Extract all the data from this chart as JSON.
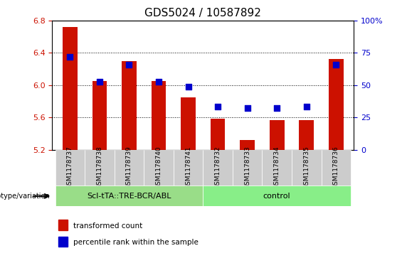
{
  "title": "GDS5024 / 10587892",
  "samples": [
    "GSM1178737",
    "GSM1178738",
    "GSM1178739",
    "GSM1178740",
    "GSM1178741",
    "GSM1178732",
    "GSM1178733",
    "GSM1178734",
    "GSM1178735",
    "GSM1178736"
  ],
  "red_values": [
    6.72,
    6.05,
    6.3,
    6.05,
    5.85,
    5.58,
    5.32,
    5.57,
    5.57,
    6.32
  ],
  "blue_values": [
    6.35,
    6.04,
    6.25,
    6.04,
    5.98,
    5.73,
    5.72,
    5.72,
    5.73,
    6.25
  ],
  "ylim": [
    5.2,
    6.8
  ],
  "yticks": [
    5.2,
    5.6,
    6.0,
    6.4,
    6.8
  ],
  "y2lim": [
    0,
    100
  ],
  "y2ticks": [
    0,
    25,
    50,
    75,
    100
  ],
  "y2ticklabels": [
    "0",
    "25",
    "50",
    "75",
    "100%"
  ],
  "group1_label": "Scl-tTA::TRE-BCR/ABL",
  "group2_label": "control",
  "group1_count": 5,
  "group2_count": 5,
  "bar_color": "#cc1100",
  "dot_color": "#0000cc",
  "bg_color": "#cccccc",
  "group1_bg": "#99dd88",
  "group2_bg": "#88ee88",
  "legend_label1": "transformed count",
  "legend_label2": "percentile rank within the sample",
  "genotype_label": "genotype/variation",
  "baseline": 5.2,
  "bar_width": 0.5,
  "dot_size": 40,
  "title_fontsize": 11,
  "tick_fontsize": 8,
  "label_fontsize": 8
}
